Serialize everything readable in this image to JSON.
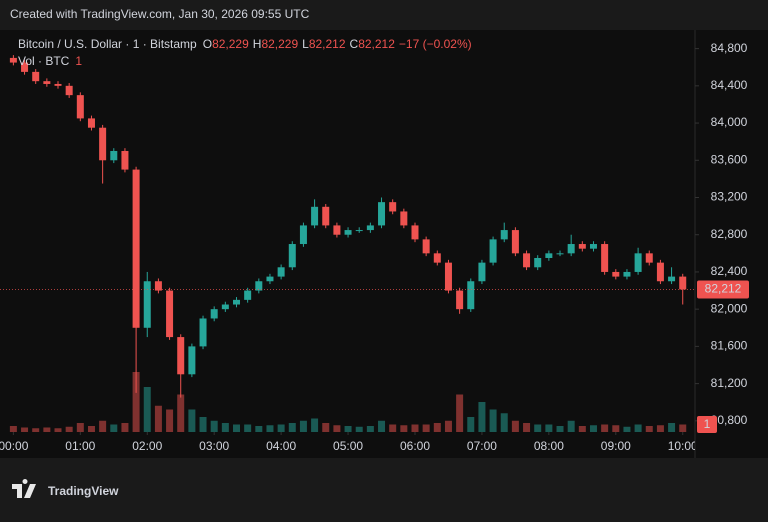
{
  "header": "Created with TradingView.com, Jan 30, 2026 09:55 UTC",
  "logo": "TradingView",
  "chart_data": {
    "type": "candlestick",
    "symbol": "Bitcoin / U.S. Dollar · 1 · Bitstamp",
    "ohlc_legend": [
      {
        "key": "O",
        "value": "82,229"
      },
      {
        "key": "H",
        "value": "82,229"
      },
      {
        "key": "L",
        "value": "82,212"
      },
      {
        "key": "C",
        "value": "82,212"
      }
    ],
    "change": "−17 (−0.02%)",
    "volume_title": "Vol · BTC",
    "volume_legend": "1",
    "last_label": {
      "value": 82212,
      "label": "82,212"
    },
    "up_color": "#26a69a",
    "down_color": "#ef5350",
    "grid": false,
    "x": [
      0,
      10,
      20,
      30,
      40,
      50,
      60,
      70,
      80,
      90,
      100,
      110,
      120,
      130,
      140,
      150,
      160,
      170,
      180,
      190,
      200,
      210,
      220,
      230,
      240,
      250,
      260,
      270,
      280,
      290,
      300,
      310,
      320,
      330,
      340,
      350,
      360,
      370,
      380,
      390,
      400,
      410,
      420,
      430,
      440,
      450,
      460,
      470,
      480,
      490,
      500,
      510,
      520,
      530,
      540,
      550,
      560,
      570,
      580,
      590,
      600
    ],
    "open": [
      84700,
      84650,
      84550,
      84450,
      84420,
      84400,
      84300,
      84050,
      83950,
      83600,
      83700,
      83500,
      81800,
      82300,
      82200,
      81700,
      81300,
      81600,
      81900,
      82000,
      82050,
      82100,
      82200,
      82300,
      82350,
      82450,
      82700,
      82900,
      83100,
      82900,
      82800,
      82850,
      82850,
      82900,
      83150,
      83050,
      82900,
      82750,
      82600,
      82500,
      82200,
      82000,
      82300,
      82500,
      82750,
      82850,
      82600,
      82450,
      82550,
      82600,
      82600,
      82700,
      82650,
      82700,
      82400,
      82350,
      82400,
      82600,
      82500,
      82300,
      82350
    ],
    "high": [
      84730,
      84680,
      84580,
      84480,
      84450,
      84430,
      84330,
      84080,
      83980,
      83730,
      83730,
      83530,
      82400,
      82330,
      82230,
      81730,
      81630,
      81930,
      82030,
      82080,
      82130,
      82230,
      82330,
      82380,
      82480,
      82730,
      82930,
      83180,
      83130,
      82930,
      82880,
      82880,
      82930,
      83200,
      83180,
      83080,
      82930,
      82780,
      82630,
      82530,
      82230,
      82330,
      82530,
      82780,
      82930,
      82880,
      82630,
      82580,
      82630,
      82630,
      82800,
      82730,
      82730,
      82730,
      82430,
      82430,
      82660,
      82630,
      82530,
      82450,
      82380
    ],
    "low": [
      84620,
      84520,
      84420,
      84390,
      84370,
      84270,
      84020,
      83920,
      83350,
      83570,
      83470,
      81100,
      81700,
      82170,
      81670,
      81050,
      81270,
      81570,
      81870,
      81970,
      82020,
      82070,
      82170,
      82270,
      82320,
      82420,
      82670,
      82870,
      82870,
      82770,
      82770,
      82820,
      82820,
      82870,
      83020,
      82870,
      82720,
      82570,
      82470,
      82170,
      81950,
      81970,
      82270,
      82470,
      82720,
      82570,
      82420,
      82420,
      82520,
      82570,
      82570,
      82620,
      82620,
      82370,
      82320,
      82320,
      82370,
      82470,
      82270,
      82270,
      82050
    ],
    "close": [
      84650,
      84550,
      84450,
      84420,
      84400,
      84300,
      84050,
      83950,
      83600,
      83700,
      83500,
      81800,
      82300,
      82200,
      81700,
      81300,
      81600,
      81900,
      82000,
      82050,
      82100,
      82200,
      82300,
      82350,
      82450,
      82700,
      82900,
      83100,
      82900,
      82800,
      82850,
      82850,
      82900,
      83150,
      83050,
      82900,
      82750,
      82600,
      82500,
      82200,
      82000,
      82300,
      82500,
      82750,
      82850,
      82600,
      82450,
      82550,
      82600,
      82600,
      82700,
      82650,
      82700,
      82400,
      82350,
      82400,
      82600,
      82500,
      82300,
      82350,
      82212
    ],
    "volume": [
      0.8,
      0.6,
      0.5,
      0.6,
      0.5,
      0.7,
      1.2,
      0.8,
      1.5,
      1.0,
      1.2,
      8,
      6,
      3.5,
      3,
      5,
      3,
      2,
      1.5,
      1.2,
      1,
      1,
      0.8,
      0.9,
      1,
      1.2,
      1.5,
      1.8,
      1.2,
      0.9,
      0.8,
      0.7,
      0.8,
      1.5,
      1,
      0.9,
      1,
      1,
      1.2,
      1.5,
      5,
      2,
      4,
      3,
      2.5,
      1.5,
      1.2,
      1,
      1,
      0.8,
      1.5,
      0.8,
      0.9,
      1,
      0.9,
      0.7,
      1,
      0.8,
      0.9,
      1.2,
      1
    ],
    "volume_ylim": [
      0,
      8
    ],
    "xlim": [
      -12,
      611
    ],
    "xticks": [
      {
        "value": 0,
        "label": "00:00"
      },
      {
        "value": 60,
        "label": "01:00"
      },
      {
        "value": 120,
        "label": "02:00"
      },
      {
        "value": 180,
        "label": "03:00"
      },
      {
        "value": 240,
        "label": "04:00"
      },
      {
        "value": 300,
        "label": "05:00"
      },
      {
        "value": 360,
        "label": "06:00"
      },
      {
        "value": 420,
        "label": "07:00"
      },
      {
        "value": 480,
        "label": "08:00"
      },
      {
        "value": 540,
        "label": "09:00"
      },
      {
        "value": 600,
        "label": "10:00"
      }
    ],
    "ylim": [
      80680,
      85000
    ],
    "yticks": [
      {
        "value": 80800,
        "label": "80,800"
      },
      {
        "value": 81200,
        "label": "81,200"
      },
      {
        "value": 81600,
        "label": "81,600"
      },
      {
        "value": 82000,
        "label": "82,000"
      },
      {
        "value": 82400,
        "label": "82,400"
      },
      {
        "value": 82800,
        "label": "82,800"
      },
      {
        "value": 83200,
        "label": "83,200"
      },
      {
        "value": 83600,
        "label": "83,600"
      },
      {
        "value": 84000,
        "label": "84,000"
      },
      {
        "value": 84400,
        "label": "84,400"
      },
      {
        "value": 84800,
        "label": "84,800"
      }
    ]
  }
}
